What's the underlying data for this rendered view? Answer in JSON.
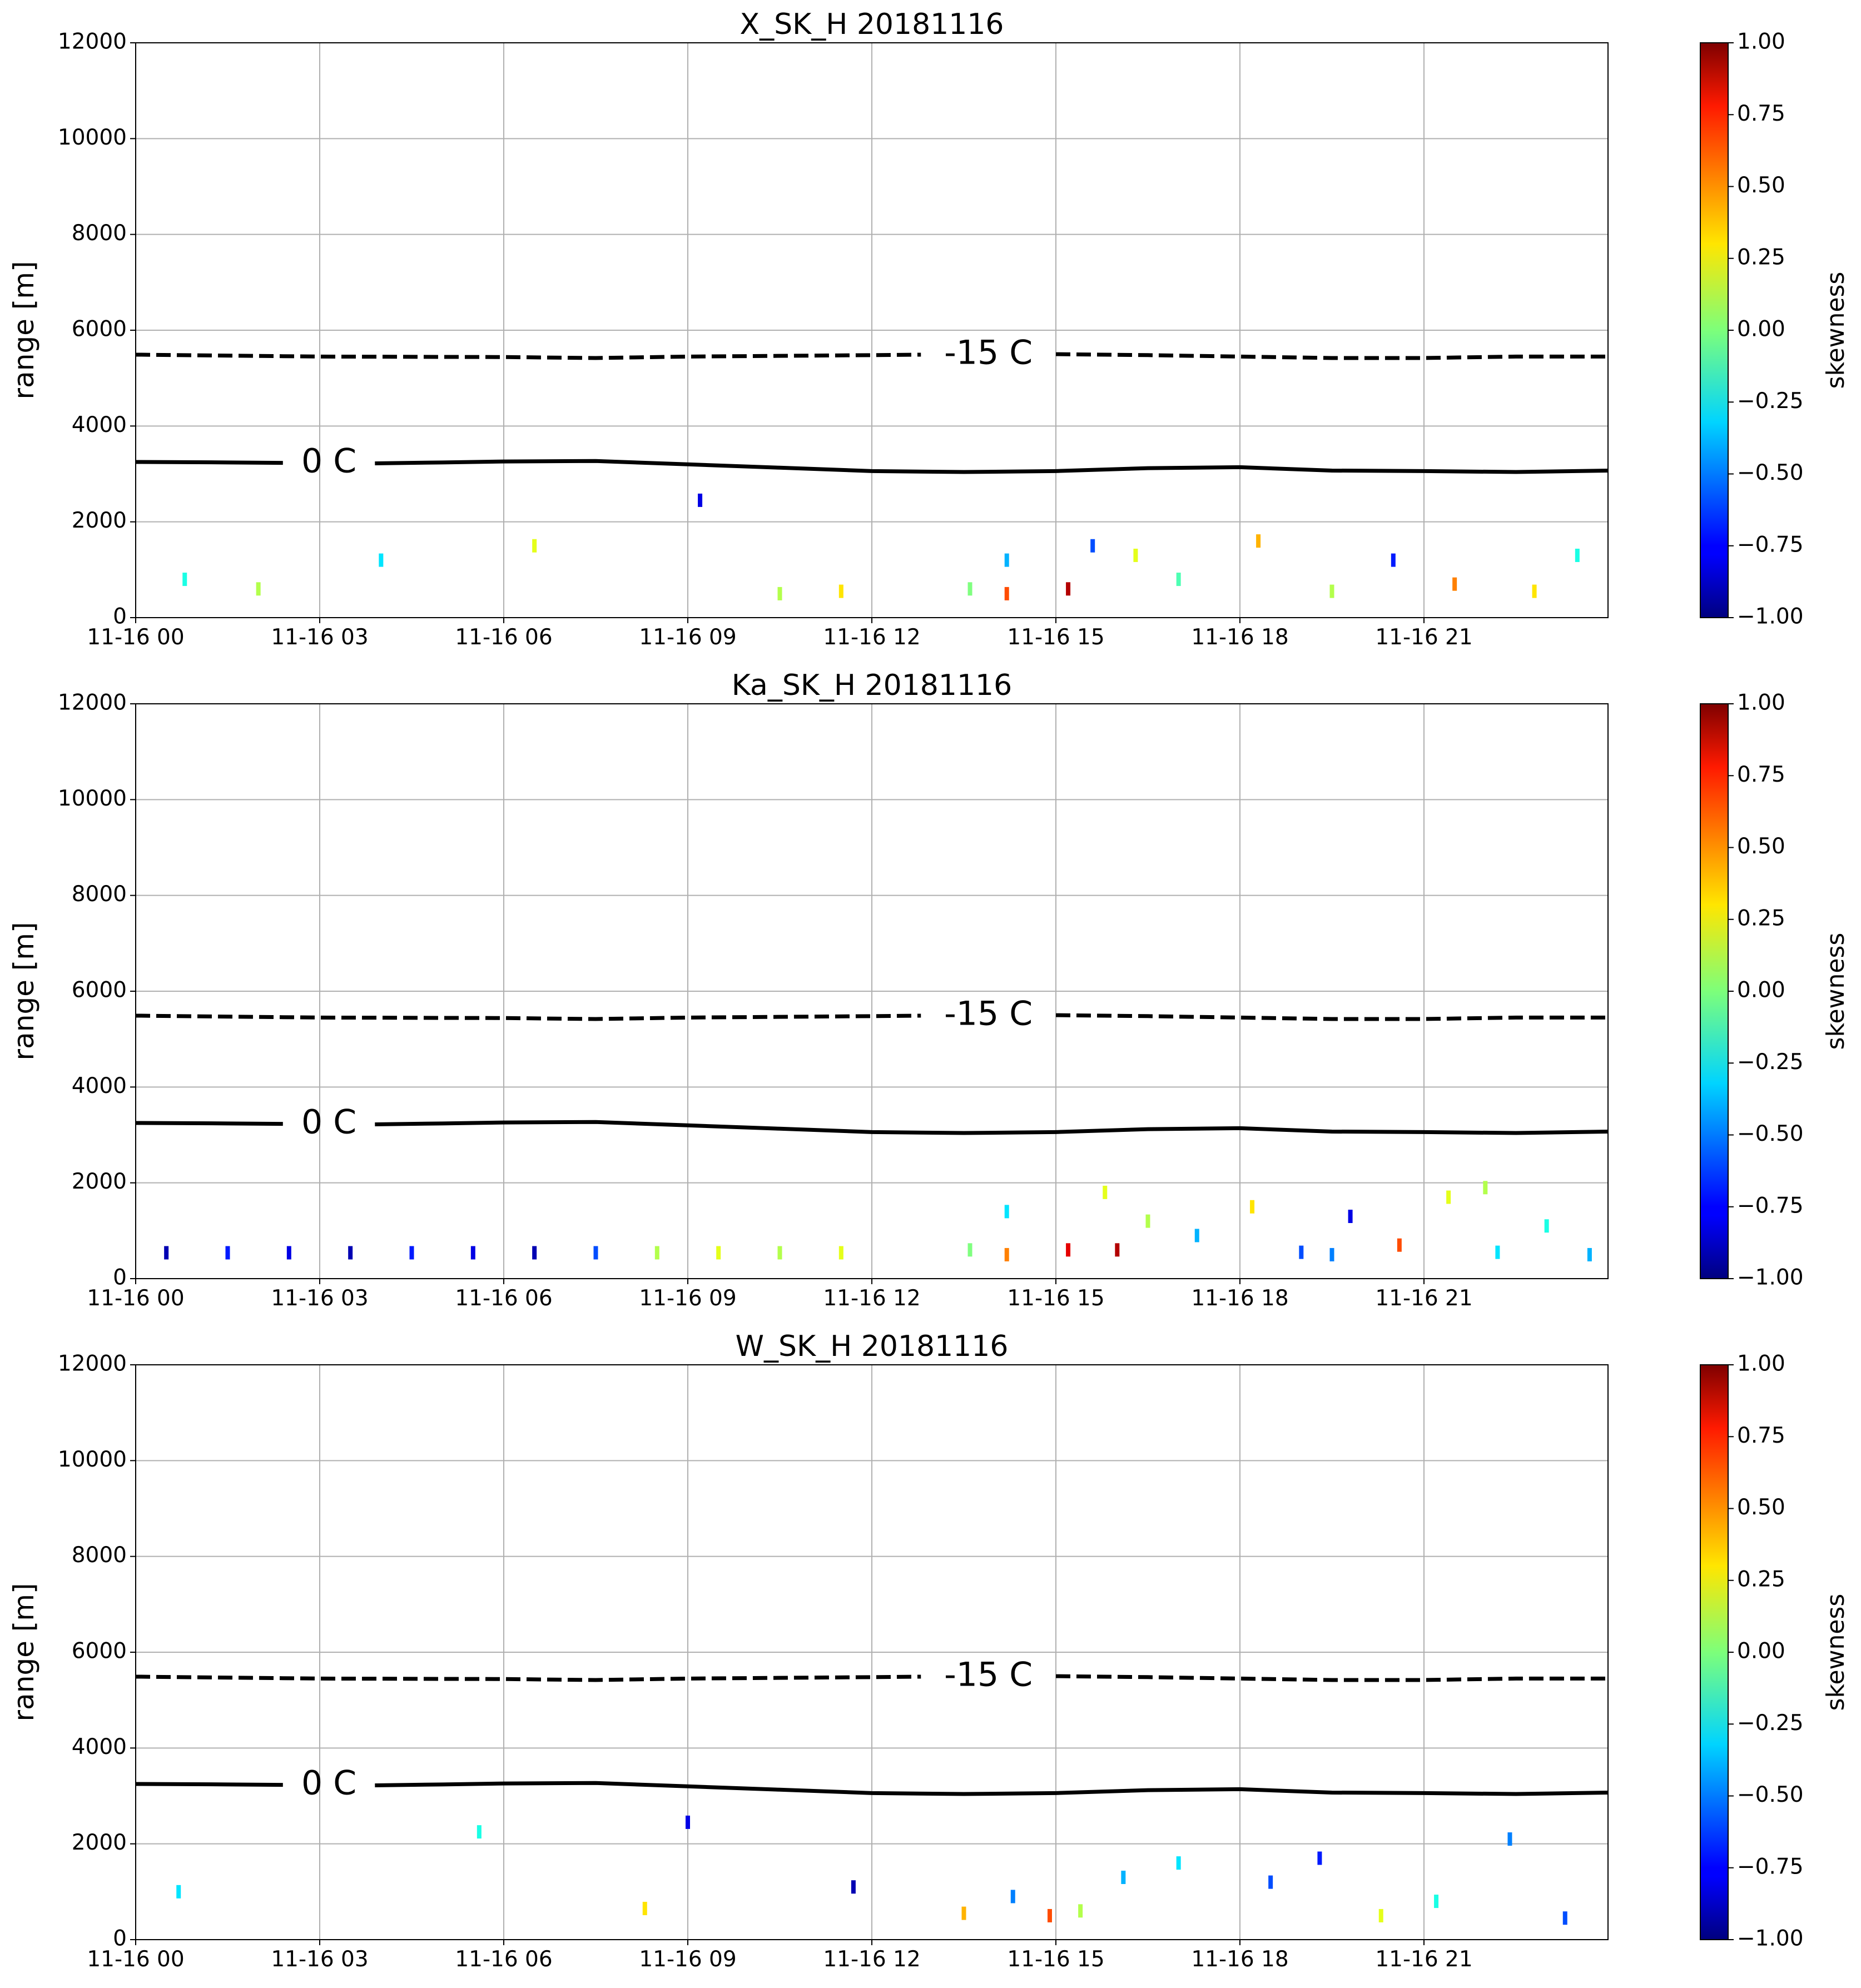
{
  "chart_data": [
    {
      "type": "heatmap",
      "title": "X_SK_H 20181116",
      "ylabel": "range [m]",
      "xlim": [
        0,
        24
      ],
      "xticks": [
        {
          "value": 0,
          "label": "11-16 00"
        },
        {
          "value": 3,
          "label": "11-16 03"
        },
        {
          "value": 6,
          "label": "11-16 06"
        },
        {
          "value": 9,
          "label": "11-16 09"
        },
        {
          "value": 12,
          "label": "11-16 12"
        },
        {
          "value": 15,
          "label": "11-16 15"
        },
        {
          "value": 18,
          "label": "11-16 18"
        },
        {
          "value": 21,
          "label": "11-16 21"
        }
      ],
      "ylim": [
        0,
        12000
      ],
      "yticks": [
        0,
        2000,
        4000,
        6000,
        8000,
        10000,
        12000
      ],
      "grid": true,
      "series": [
        {
          "name": "-15 C",
          "color": "#000000",
          "linestyle": "dashed",
          "label_x": 13.9,
          "x": [
            0,
            3,
            6,
            7.5,
            9,
            12,
            12.8,
            13.9,
            15,
            16.5,
            18,
            19.5,
            21,
            22.5,
            24
          ],
          "values": [
            5490,
            5450,
            5440,
            5420,
            5450,
            5480,
            5490,
            null,
            5500,
            5480,
            5450,
            5420,
            5420,
            5450,
            5450
          ]
        },
        {
          "name": "0 C",
          "color": "#000000",
          "linestyle": "solid",
          "label_x": 3.15,
          "x": [
            0,
            1.5,
            2.4,
            3.15,
            3.9,
            5,
            6,
            7.5,
            9,
            10.5,
            12,
            13.5,
            15,
            16.5,
            18,
            19.5,
            21,
            22.5,
            24
          ],
          "values": [
            3250,
            3240,
            3230,
            null,
            3220,
            3240,
            3260,
            3270,
            3200,
            3130,
            3060,
            3040,
            3060,
            3120,
            3140,
            3070,
            3060,
            3040,
            3070
          ]
        }
      ],
      "points": {
        "x": [
          0.8,
          2,
          4,
          6.5,
          9.2,
          10.5,
          11.5,
          13.6,
          14.2,
          14.2,
          15.2,
          15.6,
          16.3,
          17,
          18.3,
          19.5,
          20.5,
          21.5,
          22.8,
          23.5
        ],
        "y": [
          800,
          600,
          1200,
          1500,
          2450,
          500,
          550,
          600,
          1200,
          500,
          600,
          1500,
          1300,
          800,
          1600,
          550,
          1200,
          700,
          550,
          1300
        ],
        "values": [
          -0.2,
          0.1,
          -0.3,
          0.2,
          -0.8,
          0.1,
          0.3,
          0.0,
          -0.4,
          0.6,
          0.9,
          -0.6,
          0.2,
          -0.1,
          0.4,
          0.1,
          -0.7,
          0.5,
          0.3,
          -0.2
        ]
      },
      "colorbar": {
        "label": "skewness",
        "colormap": "jet",
        "lim": [
          -1,
          1
        ],
        "ticks": [
          {
            "value": 1,
            "label": "1.00"
          },
          {
            "value": 0.75,
            "label": "0.75"
          },
          {
            "value": 0.5,
            "label": "0.50"
          },
          {
            "value": 0.25,
            "label": "0.25"
          },
          {
            "value": 0,
            "label": "0.00"
          },
          {
            "value": -0.25,
            "label": "−0.25"
          },
          {
            "value": -0.5,
            "label": "−0.50"
          },
          {
            "value": -0.75,
            "label": "−0.75"
          },
          {
            "value": -1,
            "label": "−1.00"
          }
        ]
      }
    },
    {
      "type": "heatmap",
      "title": "Ka_SK_H 20181116",
      "ylabel": "range [m]",
      "xlim": [
        0,
        24
      ],
      "xticks": [
        {
          "value": 0,
          "label": "11-16 00"
        },
        {
          "value": 3,
          "label": "11-16 03"
        },
        {
          "value": 6,
          "label": "11-16 06"
        },
        {
          "value": 9,
          "label": "11-16 09"
        },
        {
          "value": 12,
          "label": "11-16 12"
        },
        {
          "value": 15,
          "label": "11-16 15"
        },
        {
          "value": 18,
          "label": "11-16 18"
        },
        {
          "value": 21,
          "label": "11-16 21"
        }
      ],
      "ylim": [
        0,
        12000
      ],
      "yticks": [
        0,
        2000,
        4000,
        6000,
        8000,
        10000,
        12000
      ],
      "grid": true,
      "series": [
        {
          "name": "-15 C",
          "color": "#000000",
          "linestyle": "dashed",
          "label_x": 13.9,
          "x": [
            0,
            3,
            6,
            7.5,
            9,
            12,
            12.8,
            13.9,
            15,
            16.5,
            18,
            19.5,
            21,
            22.5,
            24
          ],
          "values": [
            5490,
            5450,
            5440,
            5420,
            5450,
            5480,
            5490,
            null,
            5500,
            5480,
            5450,
            5420,
            5420,
            5450,
            5450
          ]
        },
        {
          "name": "0 C",
          "color": "#000000",
          "linestyle": "solid",
          "label_x": 3.15,
          "x": [
            0,
            1.5,
            2.4,
            3.15,
            3.9,
            5,
            6,
            7.5,
            9,
            10.5,
            12,
            13.5,
            15,
            16.5,
            18,
            19.5,
            21,
            22.5,
            24
          ],
          "values": [
            3250,
            3240,
            3230,
            null,
            3220,
            3240,
            3260,
            3270,
            3200,
            3130,
            3060,
            3040,
            3060,
            3120,
            3140,
            3070,
            3060,
            3040,
            3070
          ]
        }
      ],
      "points": {
        "x": [
          0.5,
          1.5,
          2.5,
          3.5,
          4.5,
          5.5,
          6.5,
          7.5,
          8.5,
          9.5,
          10.5,
          11.5,
          13.6,
          14.2,
          14.2,
          15.2,
          15.8,
          16.5,
          17.3,
          18.2,
          19,
          19.8,
          20.6,
          21.4,
          22.2,
          23,
          23.7,
          16,
          19.5,
          22
        ],
        "y": [
          540,
          540,
          540,
          540,
          540,
          540,
          540,
          540,
          540,
          540,
          540,
          540,
          600,
          1400,
          500,
          600,
          1800,
          1200,
          900,
          1500,
          550,
          1300,
          700,
          1700,
          550,
          1100,
          500,
          600,
          500,
          1900
        ],
        "values": [
          -0.9,
          -0.7,
          -0.8,
          -0.9,
          -0.7,
          -0.8,
          -0.9,
          -0.6,
          0.1,
          0.2,
          0.1,
          0.2,
          0.0,
          -0.3,
          0.5,
          0.8,
          0.2,
          0.1,
          -0.4,
          0.3,
          -0.6,
          -0.8,
          0.6,
          0.2,
          -0.3,
          -0.2,
          -0.4,
          0.9,
          -0.5,
          0.1
        ]
      },
      "colorbar": {
        "label": "skewness",
        "colormap": "jet",
        "lim": [
          -1,
          1
        ],
        "ticks": [
          {
            "value": 1,
            "label": "1.00"
          },
          {
            "value": 0.75,
            "label": "0.75"
          },
          {
            "value": 0.5,
            "label": "0.50"
          },
          {
            "value": 0.25,
            "label": "0.25"
          },
          {
            "value": 0,
            "label": "0.00"
          },
          {
            "value": -0.25,
            "label": "−0.25"
          },
          {
            "value": -0.5,
            "label": "−0.50"
          },
          {
            "value": -0.75,
            "label": "−0.75"
          },
          {
            "value": -1,
            "label": "−1.00"
          }
        ]
      }
    },
    {
      "type": "heatmap",
      "title": "W_SK_H 20181116",
      "ylabel": "range [m]",
      "xlim": [
        0,
        24
      ],
      "xticks": [
        {
          "value": 0,
          "label": "11-16 00"
        },
        {
          "value": 3,
          "label": "11-16 03"
        },
        {
          "value": 6,
          "label": "11-16 06"
        },
        {
          "value": 9,
          "label": "11-16 09"
        },
        {
          "value": 12,
          "label": "11-16 12"
        },
        {
          "value": 15,
          "label": "11-16 15"
        },
        {
          "value": 18,
          "label": "11-16 18"
        },
        {
          "value": 21,
          "label": "11-16 21"
        }
      ],
      "ylim": [
        0,
        12000
      ],
      "yticks": [
        0,
        2000,
        4000,
        6000,
        8000,
        10000,
        12000
      ],
      "grid": true,
      "series": [
        {
          "name": "-15 C",
          "color": "#000000",
          "linestyle": "dashed",
          "label_x": 13.9,
          "x": [
            0,
            3,
            6,
            7.5,
            9,
            12,
            12.8,
            13.9,
            15,
            16.5,
            18,
            19.5,
            21,
            22.5,
            24
          ],
          "values": [
            5490,
            5450,
            5440,
            5420,
            5450,
            5480,
            5490,
            null,
            5500,
            5480,
            5450,
            5420,
            5420,
            5450,
            5450
          ]
        },
        {
          "name": "0 C",
          "color": "#000000",
          "linestyle": "solid",
          "label_x": 3.15,
          "x": [
            0,
            1.5,
            2.4,
            3.15,
            3.9,
            5,
            6,
            7.5,
            9,
            10.5,
            12,
            13.5,
            15,
            16.5,
            18,
            19.5,
            21,
            22.5,
            24
          ],
          "values": [
            3250,
            3240,
            3230,
            null,
            3220,
            3240,
            3260,
            3270,
            3200,
            3130,
            3060,
            3040,
            3060,
            3120,
            3140,
            3070,
            3060,
            3040,
            3070
          ]
        }
      ],
      "points": {
        "x": [
          0.7,
          5.6,
          8.3,
          9,
          11.7,
          13.5,
          14.3,
          14.9,
          15.4,
          16.1,
          17,
          18.5,
          19.3,
          20.3,
          21.2,
          22.4,
          23.3
        ],
        "y": [
          1000,
          2250,
          650,
          2450,
          1100,
          550,
          900,
          500,
          600,
          1300,
          1600,
          1200,
          1700,
          500,
          800,
          2100,
          450
        ],
        "values": [
          -0.3,
          -0.2,
          0.3,
          -0.8,
          -0.9,
          0.4,
          -0.5,
          0.6,
          0.1,
          -0.4,
          -0.3,
          -0.6,
          -0.7,
          0.2,
          -0.2,
          -0.5,
          -0.6
        ]
      },
      "colorbar": {
        "label": "skewness",
        "colormap": "jet",
        "lim": [
          -1,
          1
        ],
        "ticks": [
          {
            "value": 1,
            "label": "1.00"
          },
          {
            "value": 0.75,
            "label": "0.75"
          },
          {
            "value": 0.5,
            "label": "0.50"
          },
          {
            "value": 0.25,
            "label": "0.25"
          },
          {
            "value": 0,
            "label": "0.00"
          },
          {
            "value": -0.25,
            "label": "−0.25"
          },
          {
            "value": -0.5,
            "label": "−0.50"
          },
          {
            "value": -0.75,
            "label": "−0.75"
          },
          {
            "value": -1,
            "label": "−1.00"
          }
        ]
      }
    }
  ]
}
